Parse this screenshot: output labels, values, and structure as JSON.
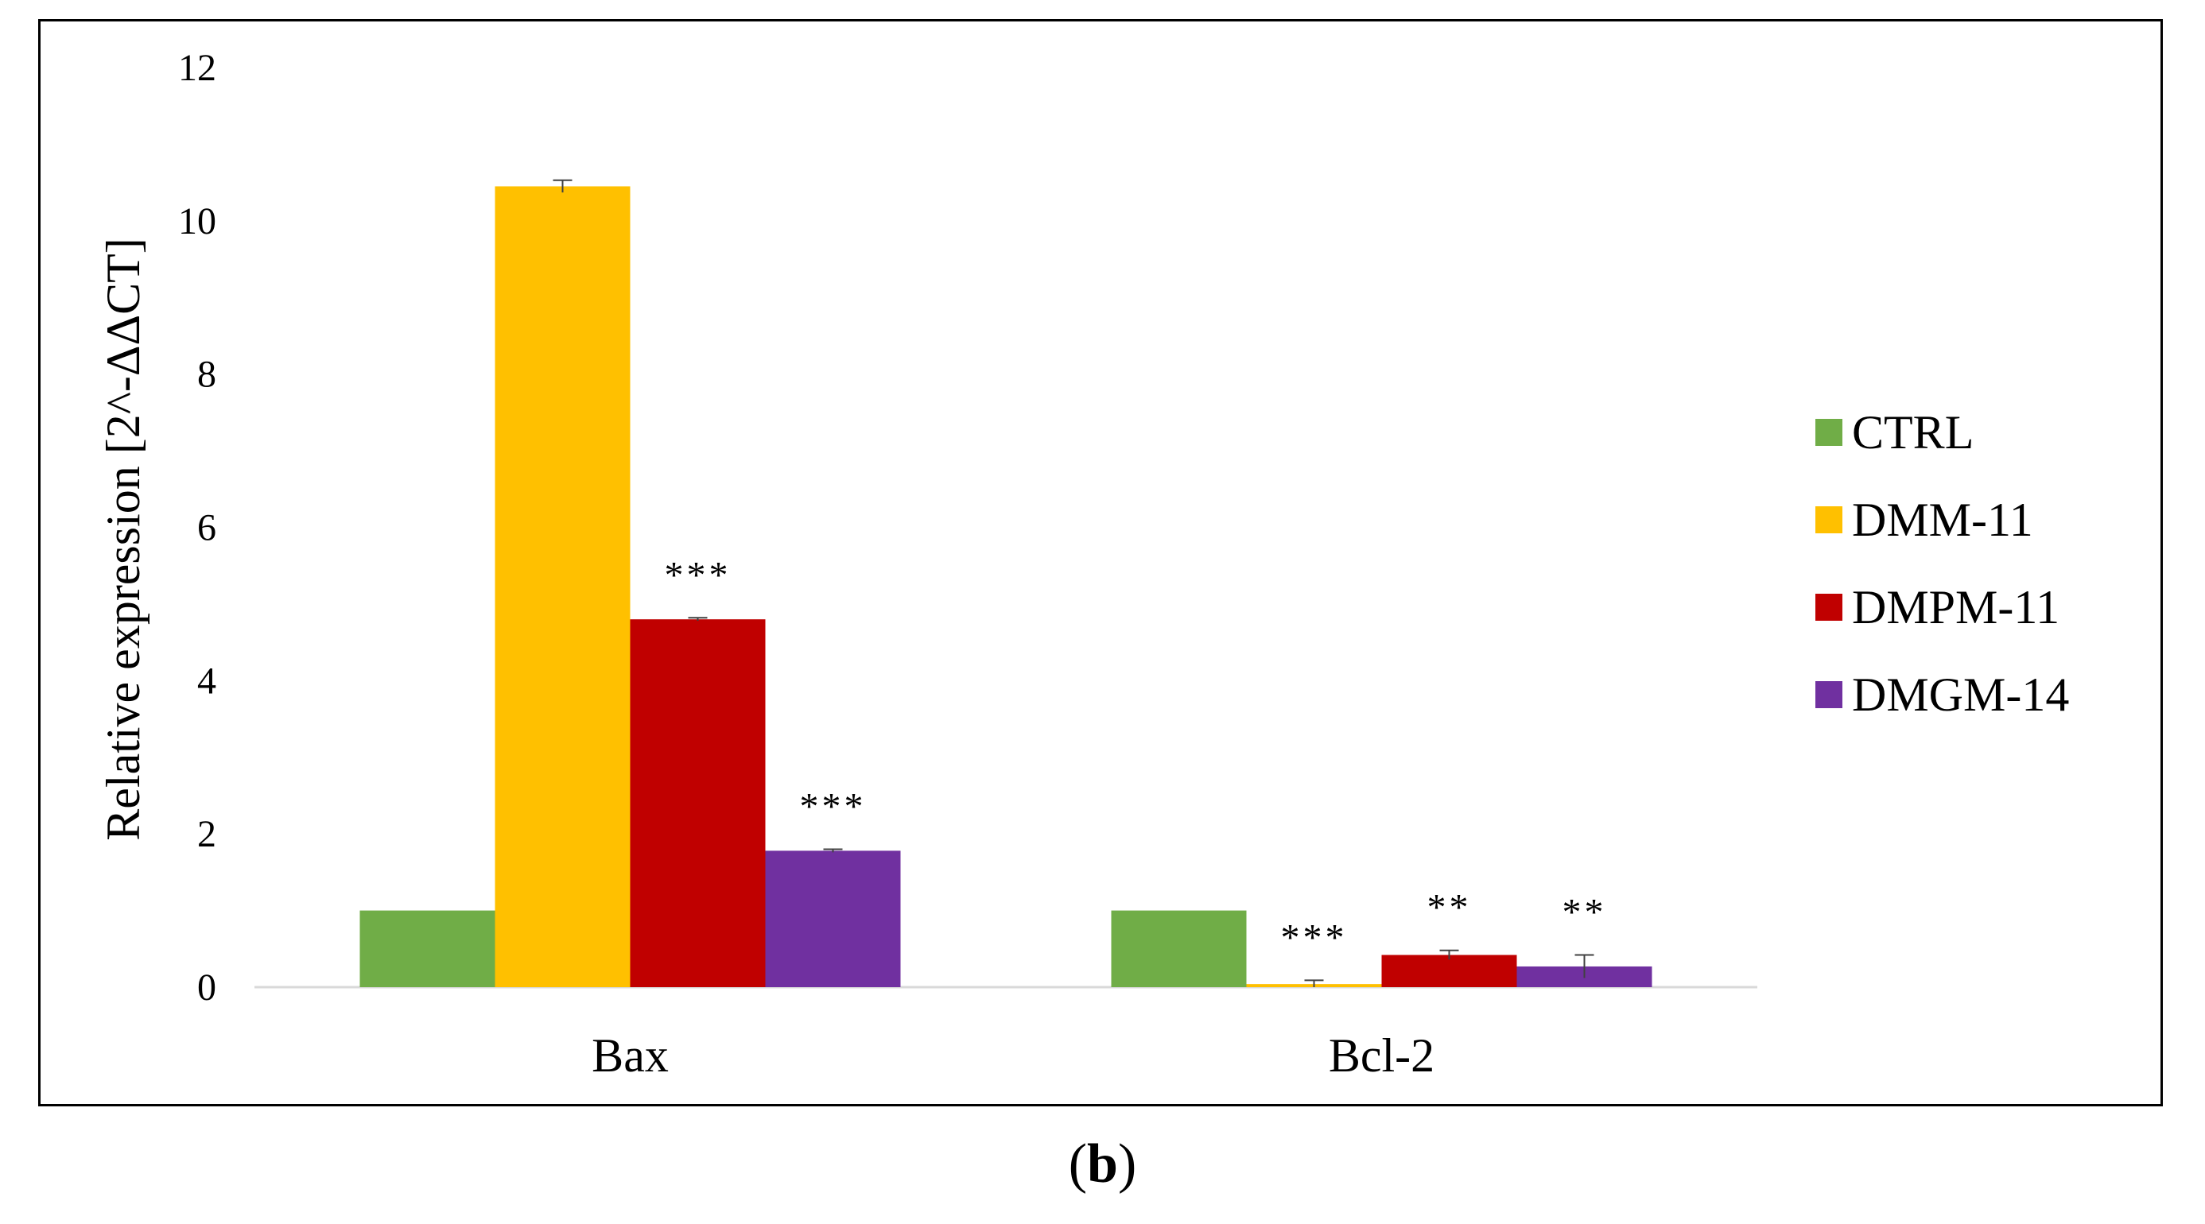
{
  "chart_data": {
    "type": "bar",
    "ylabel": "Relative expression [2^-ΔΔCT]",
    "xlabel": "",
    "ylim": [
      0,
      12
    ],
    "yticks": [
      "0",
      "2",
      "4",
      "6",
      "8",
      "10",
      "12"
    ],
    "grid": false,
    "legend_position": "right",
    "categories": [
      "Bax",
      "Bcl-2"
    ],
    "series": [
      {
        "name": "CTRL",
        "color": "#70AD47",
        "values": [
          1.0,
          1.0
        ],
        "errors": [
          0.0,
          0.0
        ],
        "significance": [
          "",
          ""
        ]
      },
      {
        "name": "DMM-11",
        "color": "#FFC000",
        "values": [
          10.45,
          0.04
        ],
        "errors": [
          0.08,
          0.05
        ],
        "significance": [
          "",
          "***"
        ]
      },
      {
        "name": "DMPM-11",
        "color": "#C00000",
        "values": [
          4.8,
          0.42
        ],
        "errors": [
          0.02,
          0.06
        ],
        "significance": [
          "***",
          "**"
        ]
      },
      {
        "name": "DMGM-14",
        "color": "#7030A0",
        "values": [
          1.78,
          0.27
        ],
        "errors": [
          0.02,
          0.15
        ],
        "significance": [
          "***",
          "**"
        ]
      }
    ]
  },
  "panel": {
    "open": "(",
    "letter": "b",
    "close": ")"
  }
}
